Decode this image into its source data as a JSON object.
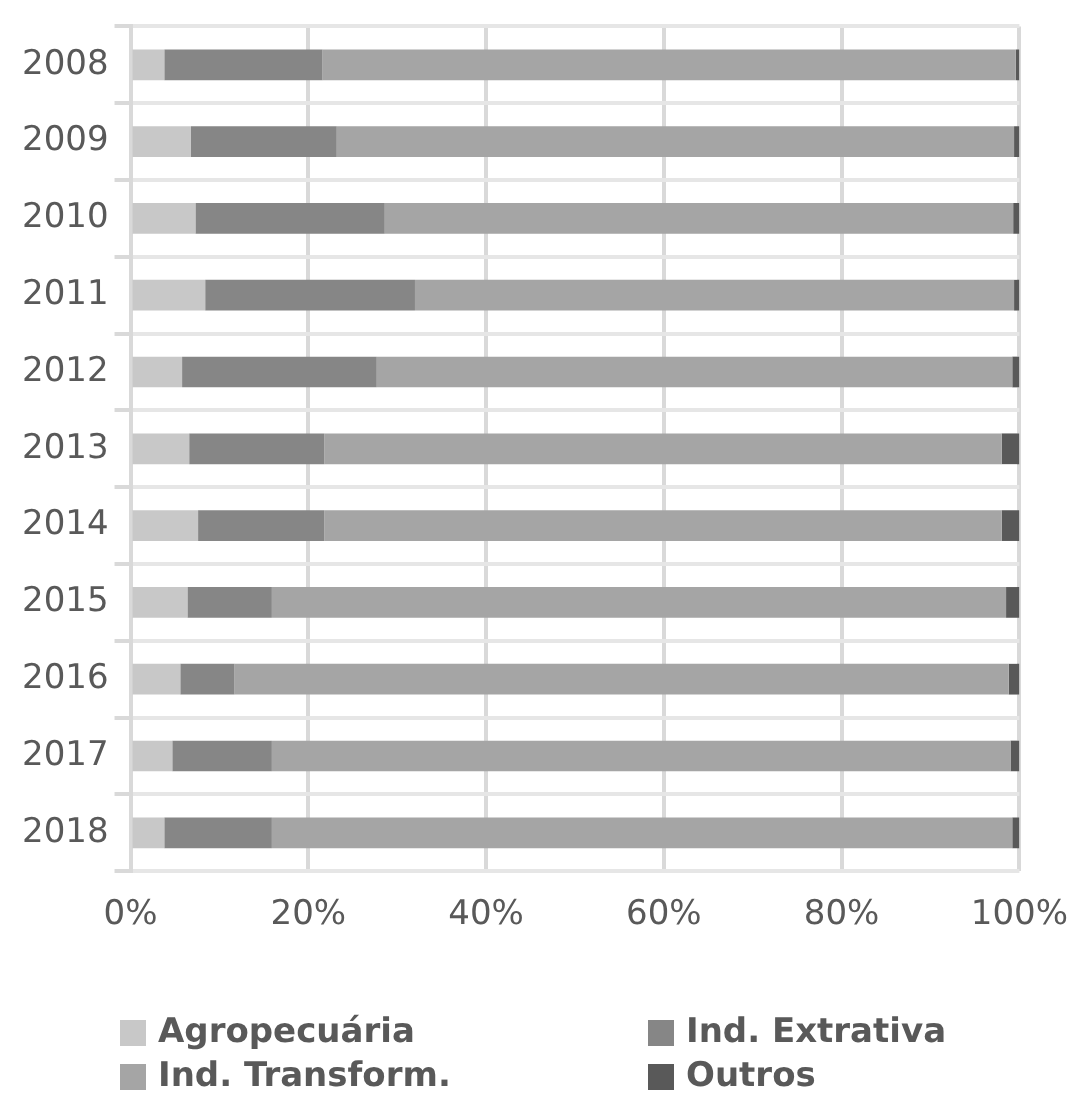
{
  "chart_data": {
    "type": "bar",
    "orientation": "horizontal",
    "stacked": true,
    "categories": [
      "2008",
      "2009",
      "2010",
      "2011",
      "2012",
      "2013",
      "2014",
      "2015",
      "2016",
      "2017",
      "2018"
    ],
    "series": [
      {
        "name": "Agropecuária",
        "color": "#c8c8c8",
        "values": [
          3.8,
          6.8,
          7.3,
          8.4,
          5.8,
          6.6,
          7.6,
          6.4,
          5.6,
          4.7,
          3.8
        ]
      },
      {
        "name": "Ind. Extrativa",
        "color": "#868686",
        "values": [
          17.8,
          16.4,
          21.3,
          23.6,
          21.9,
          15.2,
          14.2,
          9.5,
          6.1,
          11.2,
          12.1
        ]
      },
      {
        "name": "Ind. Transform.",
        "color": "#a5a5a5",
        "values": [
          78.0,
          76.2,
          70.7,
          67.4,
          71.5,
          76.2,
          76.2,
          82.6,
          87.1,
          83.1,
          83.3
        ]
      },
      {
        "name": "Outros",
        "color": "#595959",
        "values": [
          0.4,
          0.6,
          0.7,
          0.6,
          0.8,
          2.0,
          2.0,
          1.5,
          1.2,
          1.0,
          0.8
        ]
      }
    ],
    "xlim": [
      0,
      100
    ],
    "xticks": [
      {
        "value": 0,
        "label": "0%"
      },
      {
        "value": 20,
        "label": "20%"
      },
      {
        "value": 40,
        "label": "40%"
      },
      {
        "value": 60,
        "label": "60%"
      },
      {
        "value": 80,
        "label": "80%"
      },
      {
        "value": 100,
        "label": "100%"
      }
    ],
    "grid": true,
    "legend": "bottom"
  }
}
